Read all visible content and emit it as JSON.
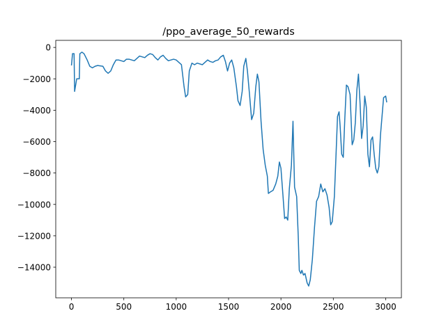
{
  "chart_data": {
    "type": "line",
    "title": "/ppo_average_50_rewards",
    "xlim": [
      -150,
      3150
    ],
    "xticks": [
      0,
      500,
      1000,
      1500,
      2000,
      2500,
      3000
    ],
    "ylim": [
      -15950,
      450
    ],
    "yticks": [
      0,
      {
        "value": -2000,
        "label": "−2000"
      },
      {
        "value": -4000,
        "label": "−4000"
      },
      {
        "value": -6000,
        "label": "−6000"
      },
      {
        "value": -8000,
        "label": "−8000"
      },
      {
        "value": -10000,
        "label": "−10000"
      },
      {
        "value": -12000,
        "label": "−12000"
      },
      {
        "value": -14000,
        "label": "−14000"
      }
    ],
    "grid": false,
    "series": [
      {
        "color": "#1f77b4",
        "x": [
          0,
          10,
          25,
          30,
          50,
          75,
          80,
          100,
          120,
          150,
          175,
          200,
          225,
          250,
          300,
          325,
          350,
          375,
          400,
          425,
          450,
          500,
          525,
          550,
          600,
          625,
          650,
          700,
          725,
          750,
          775,
          800,
          825,
          850,
          875,
          900,
          925,
          950,
          975,
          1000,
          1050,
          1075,
          1090,
          1110,
          1125,
          1150,
          1175,
          1200,
          1250,
          1275,
          1300,
          1325,
          1350,
          1375,
          1400,
          1425,
          1450,
          1470,
          1490,
          1510,
          1530,
          1550,
          1575,
          1590,
          1610,
          1630,
          1645,
          1665,
          1680,
          1700,
          1720,
          1740,
          1760,
          1775,
          1790,
          1810,
          1830,
          1850,
          1870,
          1880,
          1900,
          1925,
          1950,
          1970,
          1985,
          2000,
          2020,
          2035,
          2050,
          2065,
          2080,
          2100,
          2115,
          2130,
          2150,
          2165,
          2175,
          2190,
          2200,
          2215,
          2230,
          2250,
          2265,
          2280,
          2300,
          2320,
          2340,
          2360,
          2380,
          2400,
          2420,
          2440,
          2460,
          2475,
          2490,
          2510,
          2525,
          2540,
          2555,
          2565,
          2580,
          2595,
          2610,
          2625,
          2640,
          2660,
          2680,
          2695,
          2710,
          2725,
          2740,
          2755,
          2770,
          2785,
          2800,
          2815,
          2830,
          2845,
          2860,
          2875,
          2890,
          2905,
          2920,
          2935,
          2950,
          2965,
          2980,
          3000,
          3010
        ],
        "values": [
          -1150,
          -400,
          -400,
          -2800,
          -2000,
          -2000,
          -400,
          -300,
          -400,
          -800,
          -1200,
          -1300,
          -1200,
          -1150,
          -1200,
          -1500,
          -1650,
          -1500,
          -1100,
          -800,
          -800,
          -900,
          -750,
          -750,
          -850,
          -700,
          -550,
          -650,
          -500,
          -400,
          -450,
          -650,
          -800,
          -600,
          -500,
          -700,
          -850,
          -800,
          -750,
          -800,
          -1100,
          -2500,
          -3150,
          -3000,
          -1500,
          -1000,
          -1100,
          -1000,
          -1100,
          -950,
          -800,
          -900,
          -950,
          -850,
          -800,
          -600,
          -500,
          -900,
          -1500,
          -1000,
          -800,
          -1300,
          -2500,
          -3400,
          -3700,
          -2800,
          -1200,
          -700,
          -1500,
          -3000,
          -4600,
          -4200,
          -2500,
          -1700,
          -2200,
          -4700,
          -6500,
          -7500,
          -8200,
          -9300,
          -9200,
          -9100,
          -8700,
          -8200,
          -7300,
          -7700,
          -9500,
          -10900,
          -10800,
          -11000,
          -9000,
          -7500,
          -4700,
          -8900,
          -9500,
          -12000,
          -14200,
          -14400,
          -14200,
          -14500,
          -14400,
          -15000,
          -15200,
          -14800,
          -13500,
          -11500,
          -9800,
          -9500,
          -8700,
          -9200,
          -9000,
          -9400,
          -10200,
          -11300,
          -11100,
          -9500,
          -7000,
          -4400,
          -4100,
          -5000,
          -6800,
          -7000,
          -4500,
          -2400,
          -2500,
          -3000,
          -6200,
          -5900,
          -4800,
          -2700,
          -1700,
          -3500,
          -5800,
          -5000,
          -3100,
          -3800,
          -6800,
          -7600,
          -5900,
          -5700,
          -6800,
          -7700,
          -8000,
          -7600,
          -5600,
          -4400,
          -3200,
          -3100,
          -3500
        ]
      }
    ]
  }
}
